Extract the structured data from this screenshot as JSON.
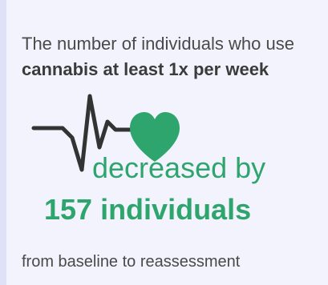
{
  "intro": {
    "text_before": "The number of individuals who use ",
    "bold_text": "cannabis at least 1x per week"
  },
  "stat": {
    "change_label": "decreased by",
    "value_text": "157 individuals"
  },
  "footer": {
    "text": "from baseline to reassessment"
  },
  "graphic": {
    "icons": [
      "heartbeat-line-icon",
      "heart-icon"
    ],
    "heart_color": "#2fa56e",
    "line_color": "#333333"
  },
  "colors": {
    "accent": "#2fa56e",
    "text": "#4a4a4a",
    "background": "#f2f3fc"
  }
}
